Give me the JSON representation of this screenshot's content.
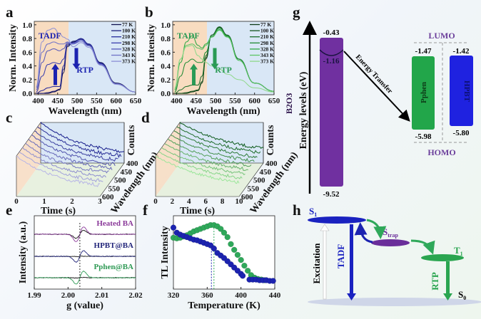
{
  "panel_labels": {
    "a": "a",
    "b": "b",
    "c": "c",
    "d": "d",
    "e": "e",
    "f": "f",
    "g": "g",
    "h": "h"
  },
  "colors": {
    "blue": "#1c1f9a",
    "green": "#1f9a4a",
    "purple": "#7030a0",
    "tadf_region": "#f8dcc0",
    "rtp_region": "#d9e7f6"
  },
  "chart_data": [
    {
      "id": "a",
      "type": "line",
      "xlabel": "Wavelength (nm)",
      "ylabel": "Norm. Intensity",
      "xlim": [
        390,
        650
      ],
      "ylim": [
        -0.02,
        1.05
      ],
      "xticks": [
        "400",
        "450",
        "500",
        "550",
        "600",
        "650"
      ],
      "xtick_values": [
        400,
        450,
        500,
        550,
        600,
        650
      ],
      "yticks": [
        "0.0",
        "0.2",
        "0.4",
        "0.6",
        "0.8",
        "1.0"
      ],
      "ytick_values": [
        0,
        0.2,
        0.4,
        0.6,
        0.8,
        1.0
      ],
      "regions": [
        {
          "name": "TADF",
          "from": 390,
          "to": 478
        },
        {
          "name": "RTP",
          "from": 478,
          "to": 650
        }
      ],
      "annotations": {
        "tadf": "TADF",
        "rtp": "RTP"
      },
      "x": [
        395,
        410,
        425,
        440,
        455,
        465,
        475,
        490,
        510,
        530,
        560,
        600,
        650
      ],
      "series": [
        {
          "name": "77 K",
          "color": "#10124f",
          "values": [
            0,
            0,
            0,
            0.02,
            0.05,
            0.3,
            0.68,
            0.75,
            0.8,
            0.72,
            0.45,
            0.15,
            0.02
          ]
        },
        {
          "name": "100 K",
          "color": "#1c1f7a",
          "values": [
            0,
            0,
            0.01,
            0.03,
            0.06,
            0.35,
            0.7,
            0.76,
            0.79,
            0.71,
            0.44,
            0.14,
            0.02
          ]
        },
        {
          "name": "210 K",
          "color": "#252a9c",
          "values": [
            0,
            0.04,
            0.08,
            0.1,
            0.1,
            0.4,
            0.72,
            0.74,
            0.8,
            0.72,
            0.44,
            0.14,
            0.02
          ]
        },
        {
          "name": "298 K",
          "color": "#3a3fae",
          "values": [
            0.02,
            0.25,
            0.42,
            0.45,
            0.43,
            0.5,
            0.72,
            0.72,
            0.78,
            0.7,
            0.43,
            0.14,
            0.02
          ]
        },
        {
          "name": "328 K",
          "color": "#5458bb",
          "values": [
            0.05,
            0.45,
            0.62,
            0.65,
            0.62,
            0.65,
            0.74,
            0.73,
            0.78,
            0.7,
            0.42,
            0.14,
            0.02
          ]
        },
        {
          "name": "343 K",
          "color": "#6f72c8",
          "values": [
            0.08,
            0.6,
            0.72,
            0.75,
            0.72,
            0.72,
            0.75,
            0.72,
            0.76,
            0.69,
            0.42,
            0.14,
            0.02
          ]
        },
        {
          "name": "373 K",
          "color": "#8c8fd6",
          "values": [
            0.1,
            0.75,
            0.92,
            0.95,
            0.87,
            0.82,
            0.79,
            0.68,
            0.74,
            0.67,
            0.41,
            0.13,
            0.02
          ]
        }
      ]
    },
    {
      "id": "b",
      "type": "line",
      "xlabel": "Wavelength (nm)",
      "ylabel": "Norm. Intensity",
      "xlim": [
        390,
        650
      ],
      "ylim": [
        -0.02,
        1.05
      ],
      "xticks": [
        "400",
        "450",
        "500",
        "550",
        "600",
        "650"
      ],
      "xtick_values": [
        400,
        450,
        500,
        550,
        600,
        650
      ],
      "yticks": [
        "0.0",
        "0.2",
        "0.4",
        "0.6",
        "0.8",
        "1.0"
      ],
      "ytick_values": [
        0,
        0.2,
        0.4,
        0.6,
        0.8,
        1.0
      ],
      "regions": [
        {
          "name": "TADF",
          "from": 390,
          "to": 478
        },
        {
          "name": "RTP",
          "from": 478,
          "to": 650
        }
      ],
      "annotations": {
        "tadf": "TADF",
        "rtp": "RTP"
      },
      "x": [
        395,
        410,
        425,
        440,
        455,
        465,
        475,
        490,
        510,
        530,
        560,
        600,
        650
      ],
      "series": [
        {
          "name": "77 K",
          "color": "#0d3a17",
          "values": [
            0,
            0,
            0,
            0.02,
            0.04,
            0.15,
            0.5,
            0.85,
            0.97,
            0.85,
            0.5,
            0.15,
            0.03
          ]
        },
        {
          "name": "100 K",
          "color": "#14551f",
          "values": [
            0,
            0,
            0.01,
            0.03,
            0.05,
            0.17,
            0.52,
            0.85,
            0.97,
            0.85,
            0.5,
            0.15,
            0.03
          ]
        },
        {
          "name": "210 K",
          "color": "#1a6e2a",
          "values": [
            0,
            0.05,
            0.1,
            0.12,
            0.12,
            0.25,
            0.55,
            0.85,
            0.96,
            0.85,
            0.5,
            0.15,
            0.03
          ]
        },
        {
          "name": "298 K",
          "color": "#1f8a34",
          "values": [
            0.02,
            0.25,
            0.45,
            0.5,
            0.45,
            0.45,
            0.6,
            0.83,
            0.95,
            0.84,
            0.5,
            0.15,
            0.03
          ]
        },
        {
          "name": "328 K",
          "color": "#2fa846",
          "values": [
            0.05,
            0.45,
            0.75,
            0.84,
            0.7,
            0.66,
            0.72,
            0.82,
            0.93,
            0.83,
            0.48,
            0.15,
            0.03
          ]
        },
        {
          "name": "343 K",
          "color": "#5cc466",
          "values": [
            0.06,
            0.5,
            0.7,
            0.72,
            0.66,
            0.64,
            0.7,
            0.82,
            0.92,
            0.82,
            0.48,
            0.15,
            0.03
          ]
        },
        {
          "name": "373 K",
          "color": "#8fd88a",
          "values": [
            0.08,
            0.5,
            0.68,
            0.7,
            0.55,
            0.5,
            0.45,
            0.4,
            0.35,
            0.28,
            0.2,
            0.08,
            0.02
          ]
        }
      ]
    },
    {
      "id": "c",
      "type": "line",
      "subtype": "waterfall",
      "xlabel": "Time (s)",
      "ylabel": "Counts",
      "zlabel": "Wavelength (nm)",
      "xlim": [
        0,
        3
      ],
      "xticks": [
        "0",
        "1",
        "2",
        "3"
      ],
      "xtick_values": [
        0,
        1,
        2,
        3
      ],
      "zticks": [
        "400",
        "450",
        "500",
        "550",
        "600"
      ],
      "zlim": [
        400,
        600
      ],
      "trace_wavelengths": [
        400,
        425,
        450,
        475,
        500,
        525,
        550,
        575,
        600
      ],
      "decay_constant_s": 1.6,
      "color_back": "#141a8a",
      "color_front": "#b7b5e6"
    },
    {
      "id": "d",
      "type": "line",
      "subtype": "waterfall",
      "xlabel": "Time (s)",
      "ylabel": "Counts",
      "zlabel": "Wavelength (nm)",
      "xlim": [
        0,
        10
      ],
      "xticks": [
        "0",
        "2",
        "4",
        "6",
        "8",
        "10"
      ],
      "xtick_values": [
        0,
        2,
        4,
        6,
        8,
        10
      ],
      "zticks": [
        "400",
        "450",
        "500",
        "550",
        "600"
      ],
      "zlim": [
        400,
        600
      ],
      "trace_wavelengths": [
        400,
        425,
        450,
        475,
        500,
        525,
        550,
        575,
        600
      ],
      "decay_constant_s": 7,
      "color_back": "#0b5a1a",
      "color_front": "#9be69a"
    },
    {
      "id": "e",
      "type": "line",
      "xlabel": "g (value)",
      "ylabel": "Intensity (a.u.)",
      "xlim": [
        1.99,
        2.02
      ],
      "xticks": [
        "1.99",
        "2.00",
        "2.01",
        "2.02"
      ],
      "xtick_values": [
        1.99,
        2.0,
        2.01,
        2.02
      ],
      "g_center": 2.0035,
      "series": [
        {
          "name": "Heated BA",
          "color": "#8b3a9a",
          "amplitude": 1.0,
          "reference_amplitude": 0.55
        },
        {
          "name": "HPBT@BA",
          "color": "#22257a",
          "amplitude": 0.8,
          "reference_amplitude": 0.03
        },
        {
          "name": "Pphen@BA",
          "color": "#2f9a55",
          "amplitude": 0.9,
          "reference_amplitude": 0.03
        }
      ]
    },
    {
      "id": "f",
      "type": "scatter",
      "xlabel": "Temperature (K)",
      "ylabel": "TL Intensity",
      "xlim": [
        320,
        440
      ],
      "ylim": [
        0,
        1
      ],
      "xticks": [
        "320",
        "360",
        "400",
        "440"
      ],
      "xtick_values": [
        320,
        360,
        400,
        440
      ],
      "peak_markers": [
        365,
        368
      ],
      "series": [
        {
          "name": "HPBT@BA",
          "color": "#1c23b0",
          "x": [
            320,
            324,
            328,
            332,
            336,
            340,
            344,
            348,
            352,
            356,
            360,
            364,
            368,
            372,
            376,
            380,
            384,
            388,
            392,
            396,
            400,
            402,
            410,
            414,
            418,
            422,
            426,
            430,
            434,
            438
          ],
          "y": [
            0.88,
            0.8,
            0.77,
            0.75,
            0.73,
            0.71,
            0.69,
            0.68,
            0.66,
            0.64,
            0.62,
            0.6,
            0.55,
            0.48,
            0.44,
            0.4,
            0.35,
            0.3,
            0.25,
            0.2,
            0.15,
            0.12,
            0.06,
            0.06,
            0.06,
            0.05,
            0.05,
            0.05,
            0.04,
            0.04
          ]
        },
        {
          "name": "Pphen@BA",
          "color": "#2fa85a",
          "x": [
            320,
            324,
            328,
            332,
            336,
            340,
            344,
            348,
            352,
            356,
            360,
            364,
            368,
            372,
            376,
            380,
            384,
            388,
            392,
            396,
            400,
            404,
            408,
            412,
            416,
            420,
            424,
            428
          ],
          "y": [
            0.72,
            0.71,
            0.72,
            0.74,
            0.76,
            0.79,
            0.82,
            0.84,
            0.86,
            0.88,
            0.9,
            0.92,
            0.92,
            0.9,
            0.86,
            0.8,
            0.73,
            0.62,
            0.53,
            0.45,
            0.37,
            0.28,
            0.2,
            0.13,
            0.09,
            0.07,
            0.06,
            0.05
          ]
        }
      ]
    }
  ],
  "energy_diagram": {
    "ylabel": "Energy levels (eV)",
    "b2o3": {
      "name": "B2O3",
      "lumo": "-0.43",
      "trap": "-1.16",
      "homo": "-9.52",
      "color": "#7030a0"
    },
    "pphen": {
      "name": "Pphen",
      "lumo": "-1.47",
      "homo": "-5.98",
      "color": "#22a64a"
    },
    "hpbt": {
      "name": "HPBT",
      "lumo": "-1.42",
      "homo": "-5.80",
      "color": "#1f22e0"
    },
    "transfer_label": "Energy Transfer",
    "lumo_label": "LUMO",
    "homo_label": "HOMO"
  },
  "jablonski": {
    "s1": "S",
    "s1_sub": "1",
    "strap": "S",
    "strap_sub": "trap",
    "t1": "T",
    "t1_sub": "1",
    "s0": "S",
    "s0_sub": "0",
    "excitation": "Excitation",
    "tadf": "TADF",
    "rtp": "RTP"
  }
}
